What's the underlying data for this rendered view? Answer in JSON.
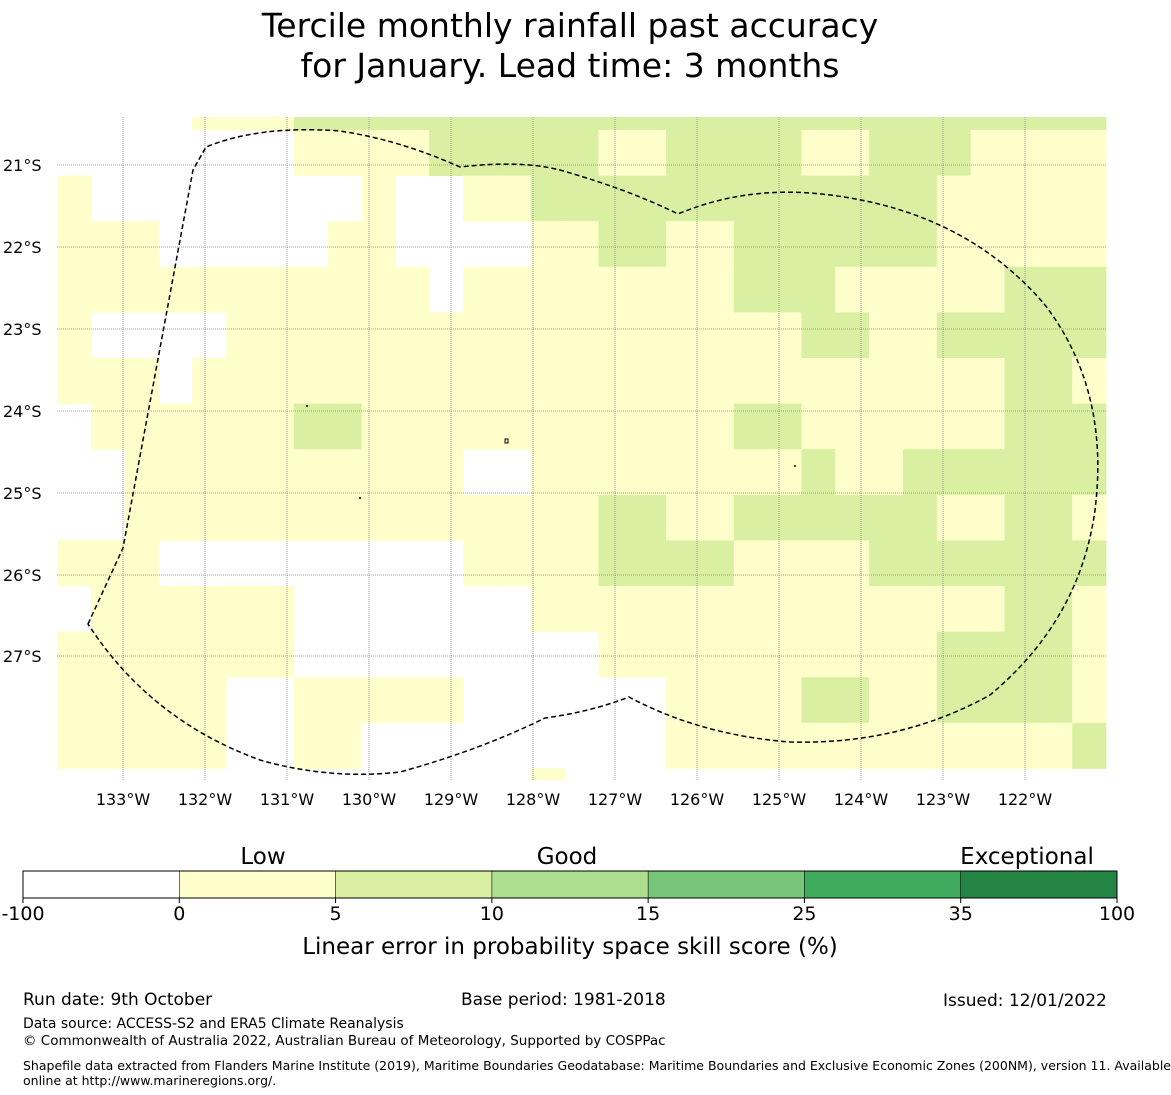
{
  "title": {
    "line1": "Tercile monthly rainfall past accuracy",
    "line2": "for January. Lead time: 3 months"
  },
  "map": {
    "lat_labels": [
      "21°S",
      "22°S",
      "23°S",
      "24°S",
      "25°S",
      "26°S",
      "27°S"
    ],
    "lon_labels": [
      "133°W",
      "132°W",
      "131°W",
      "130°W",
      "129°W",
      "128°W",
      "127°W",
      "126°W",
      "125°W",
      "124°W",
      "123°W",
      "122°W"
    ],
    "grid_values_note": "class index per cell: -1 none, 0 = 0–5 (pale yellow), 1 = 5–10 (light green)",
    "grid": [
      [
        -1,
        -1,
        -1,
        -1,
        0,
        0,
        0,
        1,
        1,
        1,
        1,
        1,
        1,
        1,
        1,
        1,
        1,
        1,
        1,
        1,
        1,
        1,
        1,
        1,
        1,
        1,
        1,
        1,
        1,
        1,
        1
      ],
      [
        -1,
        -1,
        -1,
        -1,
        -1,
        -1,
        -1,
        0,
        0,
        0,
        0,
        1,
        1,
        1,
        1,
        1,
        0,
        0,
        1,
        1,
        1,
        1,
        0,
        0,
        1,
        1,
        1,
        0,
        0,
        0,
        0
      ],
      [
        0,
        -1,
        -1,
        -1,
        -1,
        -1,
        -1,
        -1,
        -1,
        0,
        -1,
        -1,
        0,
        0,
        1,
        1,
        1,
        1,
        1,
        1,
        1,
        1,
        1,
        1,
        1,
        1,
        0,
        0,
        0,
        0,
        0
      ],
      [
        0,
        0,
        0,
        -1,
        -1,
        -1,
        -1,
        -1,
        0,
        0,
        -1,
        -1,
        -1,
        -1,
        0,
        0,
        1,
        1,
        0,
        0,
        1,
        1,
        1,
        1,
        1,
        1,
        0,
        0,
        0,
        0,
        0
      ],
      [
        0,
        0,
        0,
        0,
        0,
        0,
        0,
        0,
        0,
        0,
        0,
        -1,
        0,
        0,
        0,
        0,
        0,
        0,
        0,
        0,
        1,
        1,
        1,
        0,
        0,
        0,
        0,
        0,
        1,
        1,
        1
      ],
      [
        0,
        -1,
        -1,
        -1,
        -1,
        0,
        0,
        0,
        0,
        0,
        0,
        0,
        0,
        0,
        0,
        0,
        0,
        0,
        0,
        0,
        0,
        0,
        1,
        1,
        0,
        0,
        1,
        1,
        1,
        1,
        1
      ],
      [
        0,
        0,
        0,
        -1,
        0,
        0,
        0,
        0,
        0,
        0,
        0,
        0,
        0,
        0,
        0,
        0,
        0,
        0,
        0,
        0,
        0,
        0,
        0,
        0,
        0,
        0,
        0,
        0,
        1,
        1,
        0
      ],
      [
        -1,
        0,
        0,
        0,
        0,
        0,
        0,
        1,
        1,
        0,
        0,
        0,
        0,
        0,
        0,
        0,
        0,
        0,
        0,
        0,
        1,
        1,
        0,
        0,
        0,
        0,
        0,
        0,
        1,
        1,
        1
      ],
      [
        -1,
        -1,
        0,
        0,
        0,
        0,
        0,
        0,
        0,
        0,
        0,
        0,
        -1,
        -1,
        0,
        0,
        0,
        0,
        0,
        0,
        0,
        0,
        1,
        0,
        0,
        1,
        1,
        1,
        1,
        1,
        1
      ],
      [
        -1,
        -1,
        0,
        0,
        0,
        0,
        0,
        0,
        0,
        0,
        0,
        0,
        0,
        0,
        0,
        0,
        1,
        1,
        0,
        0,
        1,
        1,
        1,
        1,
        1,
        1,
        0,
        0,
        1,
        1,
        0
      ],
      [
        0,
        0,
        0,
        -1,
        -1,
        -1,
        -1,
        -1,
        -1,
        -1,
        -1,
        -1,
        0,
        0,
        0,
        0,
        1,
        1,
        1,
        1,
        0,
        0,
        0,
        0,
        1,
        1,
        1,
        1,
        1,
        1,
        1
      ],
      [
        -1,
        0,
        0,
        0,
        0,
        0,
        0,
        -1,
        -1,
        -1,
        -1,
        -1,
        -1,
        -1,
        0,
        0,
        0,
        0,
        0,
        0,
        0,
        0,
        0,
        0,
        0,
        0,
        0,
        0,
        1,
        1,
        0
      ],
      [
        0,
        0,
        0,
        0,
        0,
        0,
        0,
        -1,
        -1,
        -1,
        -1,
        -1,
        -1,
        -1,
        -1,
        -1,
        0,
        0,
        0,
        0,
        0,
        0,
        0,
        0,
        0,
        0,
        1,
        1,
        1,
        1,
        0
      ],
      [
        0,
        0,
        0,
        0,
        0,
        -1,
        -1,
        0,
        0,
        0,
        0,
        0,
        -1,
        -1,
        -1,
        -1,
        -1,
        -1,
        0,
        0,
        0,
        0,
        1,
        1,
        0,
        0,
        1,
        1,
        1,
        1,
        0
      ],
      [
        0,
        0,
        0,
        0,
        0,
        -1,
        -1,
        0,
        0,
        -1,
        -1,
        -1,
        -1,
        -1,
        -1,
        -1,
        -1,
        -1,
        0,
        0,
        0,
        0,
        0,
        0,
        0,
        0,
        0,
        0,
        0,
        0,
        1
      ],
      [
        -1,
        -1,
        -1,
        -1,
        -1,
        -1,
        -1,
        -1,
        -1,
        -1,
        -1,
        -1,
        -1,
        -1,
        0,
        -1,
        -1,
        -1,
        -1,
        -1,
        -1,
        -1,
        -1,
        -1,
        -1,
        -1,
        -1,
        -1,
        -1,
        -1,
        -1
      ]
    ]
  },
  "legend": {
    "category_low": "Low",
    "category_good": "Good",
    "category_exceptional": "Exceptional",
    "ticks": [
      "-100",
      "0",
      "5",
      "10",
      "15",
      "25",
      "35",
      "100"
    ],
    "colors": [
      "#ffffff",
      "#ffffcc",
      "#d9f0a3",
      "#addd8e",
      "#78c679",
      "#41ab5d",
      "#238443"
    ],
    "label": "Linear error in probability space skill score (%)"
  },
  "footer": {
    "run_date": "Run date: 9th October",
    "base_period": "Base period: 1981-2018",
    "issued": "Issued: 12/01/2022",
    "data_source": "Data source: ACCESS-S2 and ERA5 Climate Reanalysis",
    "copyright": "© Commonwealth of Australia 2022, Australian Bureau of Meteorology, Supported by COSPPac",
    "shapefile_line1": "Shapefile data extracted from Flanders Marine Institute (2019), Maritime Boundaries Geodatabase: Maritime Boundaries and Exclusive Economic Zones (200NM), version 11. Available",
    "shapefile_line2": "online at http://www.marineregions.org/."
  }
}
